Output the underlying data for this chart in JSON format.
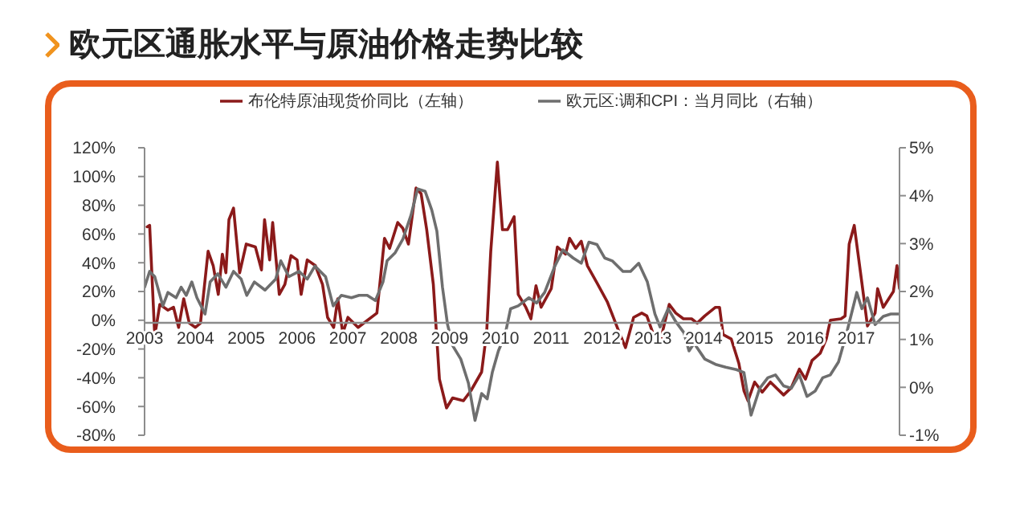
{
  "chart_data": {
    "type": "line",
    "title": "欧元区通胀水平与原油价格走势比较",
    "xlim": [
      2003,
      2017.85
    ],
    "xticks": [
      2003,
      2004,
      2005,
      2006,
      2007,
      2008,
      2009,
      2010,
      2011,
      2012,
      2013,
      2014,
      2015,
      2016,
      2017
    ],
    "ylim": [
      -80,
      120
    ],
    "yticks": [
      {
        "value": -80,
        "label": "-80%"
      },
      {
        "value": -60,
        "label": "-60%"
      },
      {
        "value": -40,
        "label": "-40%"
      },
      {
        "value": -20,
        "label": "-20%"
      },
      {
        "value": 0,
        "label": "0%"
      },
      {
        "value": 20,
        "label": "20%"
      },
      {
        "value": 40,
        "label": "40%"
      },
      {
        "value": 60,
        "label": "60%"
      },
      {
        "value": 80,
        "label": "80%"
      },
      {
        "value": 100,
        "label": "100%"
      },
      {
        "value": 120,
        "label": "120%"
      }
    ],
    "y2lim": [
      -1,
      5
    ],
    "y2ticks": [
      {
        "value": -1,
        "label": "-1%"
      },
      {
        "value": 0,
        "label": "0%"
      },
      {
        "value": 1,
        "label": "1%"
      },
      {
        "value": 2,
        "label": "2%"
      },
      {
        "value": 3,
        "label": "3%"
      },
      {
        "value": 4,
        "label": "4%"
      },
      {
        "value": 5,
        "label": "5%"
      }
    ],
    "grid": false,
    "legend": "top",
    "marker": "none",
    "line_style": "solid",
    "series": [
      {
        "name": "布伦特原油现货价同比（左轴）",
        "color": "#8b1a1a",
        "x": [
          2003.05,
          2003.1,
          2003.2,
          2003.3,
          2003.46,
          2003.57,
          2003.67,
          2003.77,
          2003.88,
          2004.0,
          2004.1,
          2004.25,
          2004.35,
          2004.45,
          2004.53,
          2004.6,
          2004.66,
          2004.75,
          2004.87,
          2005.0,
          2005.18,
          2005.3,
          2005.36,
          2005.46,
          2005.52,
          2005.65,
          2005.76,
          2005.88,
          2006.0,
          2006.08,
          2006.2,
          2006.36,
          2006.5,
          2006.6,
          2006.72,
          2006.8,
          2006.9,
          2007.0,
          2007.2,
          2007.57,
          2007.72,
          2007.82,
          2007.98,
          2008.08,
          2008.19,
          2008.34,
          2008.44,
          2008.55,
          2008.68,
          2008.8,
          2008.94,
          2009.06,
          2009.27,
          2009.42,
          2009.63,
          2009.73,
          2009.81,
          2009.94,
          2010.04,
          2010.14,
          2010.27,
          2010.35,
          2010.5,
          2010.6,
          2010.7,
          2010.8,
          2011.0,
          2011.12,
          2011.28,
          2011.36,
          2011.48,
          2011.59,
          2011.71,
          2011.9,
          2012.1,
          2012.31,
          2012.46,
          2012.62,
          2012.78,
          2012.88,
          2012.99,
          2013.14,
          2013.32,
          2013.45,
          2013.6,
          2013.76,
          2013.87,
          2014.02,
          2014.23,
          2014.31,
          2014.38,
          2014.54,
          2014.69,
          2014.79,
          2014.87,
          2015.0,
          2015.15,
          2015.31,
          2015.57,
          2015.72,
          2015.88,
          2016.0,
          2016.13,
          2016.29,
          2016.41,
          2016.49,
          2016.7,
          2016.78,
          2016.86,
          2016.96,
          2017.11,
          2017.22,
          2017.37,
          2017.42,
          2017.53,
          2017.73,
          2017.8,
          2017.85
        ],
        "values": [
          65,
          66,
          -11,
          11,
          7,
          9,
          -5,
          15,
          -2,
          -5,
          -2,
          48,
          38,
          18,
          46,
          33,
          70,
          78,
          33,
          53,
          51,
          35,
          70,
          42,
          68,
          18,
          25,
          45,
          42,
          18,
          42,
          38,
          25,
          2,
          -5,
          15,
          -9,
          2,
          -5,
          5,
          57,
          50,
          68,
          64,
          53,
          92,
          88,
          63,
          25,
          -41,
          -61,
          -54,
          -56,
          -49,
          -36,
          -8,
          48,
          110,
          63,
          63,
          72,
          18,
          9,
          1,
          24,
          9,
          22,
          51,
          46,
          57,
          50,
          55,
          38,
          26,
          13,
          -6,
          -19,
          2,
          5,
          3,
          -8,
          -15,
          11,
          5,
          1,
          1,
          -2,
          3,
          9,
          9,
          -10,
          -13,
          -30,
          -49,
          -56,
          -43,
          -50,
          -43,
          -52,
          -47,
          -34,
          -41,
          -28,
          -23,
          -13,
          0,
          1,
          3,
          53,
          66,
          26,
          -4,
          5,
          22,
          9,
          20,
          38,
          22
        ]
      },
      {
        "name": "欧元区:调和CPI：当月同比（右轴）",
        "color": "#6e6e6e",
        "axis": "y2",
        "x": [
          2003.0,
          2003.1,
          2003.2,
          2003.36,
          2003.46,
          2003.62,
          2003.72,
          2003.82,
          2003.93,
          2004.03,
          2004.19,
          2004.29,
          2004.44,
          2004.6,
          2004.75,
          2004.9,
          2005.01,
          2005.16,
          2005.37,
          2005.58,
          2005.68,
          2005.84,
          2006.04,
          2006.2,
          2006.35,
          2006.56,
          2006.71,
          2006.87,
          2007.07,
          2007.22,
          2007.38,
          2007.54,
          2007.69,
          2007.77,
          2007.93,
          2008.08,
          2008.24,
          2008.37,
          2008.52,
          2008.65,
          2008.75,
          2008.86,
          2008.96,
          2009.06,
          2009.22,
          2009.37,
          2009.5,
          2009.63,
          2009.74,
          2009.84,
          2009.96,
          2010.09,
          2010.2,
          2010.35,
          2010.56,
          2010.71,
          2010.87,
          2011.07,
          2011.23,
          2011.43,
          2011.59,
          2011.74,
          2011.9,
          2012.05,
          2012.2,
          2012.41,
          2012.56,
          2012.72,
          2012.89,
          2013.04,
          2013.14,
          2013.3,
          2013.45,
          2013.61,
          2013.71,
          2013.81,
          2014.02,
          2014.23,
          2014.43,
          2014.64,
          2014.79,
          2014.93,
          2015.1,
          2015.26,
          2015.41,
          2015.57,
          2015.72,
          2015.88,
          2016.03,
          2016.19,
          2016.34,
          2016.49,
          2016.65,
          2016.8,
          2017.01,
          2017.11,
          2017.22,
          2017.37,
          2017.53,
          2017.68,
          2017.83
        ],
        "values": [
          2.09,
          2.42,
          2.31,
          1.7,
          1.98,
          1.87,
          2.09,
          1.92,
          2.2,
          1.87,
          1.53,
          2.2,
          2.37,
          2.09,
          2.42,
          2.26,
          1.92,
          2.2,
          2.03,
          2.26,
          2.64,
          2.31,
          2.42,
          2.26,
          2.53,
          2.31,
          1.7,
          1.92,
          1.87,
          1.92,
          1.92,
          1.81,
          2.2,
          2.64,
          2.81,
          3.09,
          3.59,
          4.14,
          4.09,
          3.7,
          3.26,
          2.09,
          1.31,
          0.87,
          0.59,
          0.09,
          -0.69,
          -0.13,
          -0.24,
          0.31,
          0.76,
          1.09,
          1.64,
          1.7,
          1.87,
          1.76,
          1.98,
          2.53,
          2.87,
          2.7,
          2.59,
          3.03,
          2.98,
          2.7,
          2.64,
          2.42,
          2.42,
          2.59,
          2.2,
          1.53,
          1.26,
          1.64,
          1.37,
          1.14,
          0.76,
          0.92,
          0.59,
          0.48,
          0.42,
          0.37,
          0.31,
          -0.58,
          -0.02,
          0.2,
          0.26,
          0.03,
          -0.02,
          0.26,
          -0.19,
          -0.08,
          0.2,
          0.26,
          0.53,
          1.09,
          1.98,
          1.64,
          1.87,
          1.31,
          1.48,
          1.53,
          1.53
        ]
      }
    ]
  }
}
